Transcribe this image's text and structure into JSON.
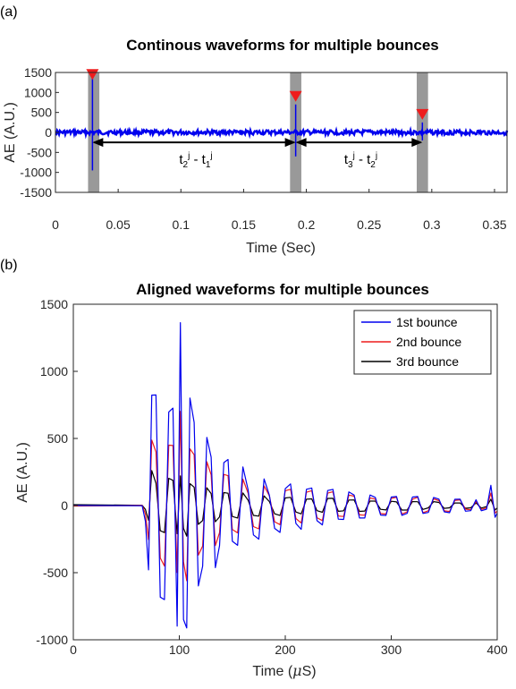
{
  "chart_data": [
    {
      "panel_label": "(a)",
      "type": "line",
      "title": "Continous waveforms for multiple bounces",
      "xlabel": "Time (Sec)",
      "ylabel": "AE (A.U.)",
      "xlim": [
        0,
        0.36
      ],
      "ylim": [
        -1500,
        1500
      ],
      "xticks": [
        0,
        0.05,
        0.1,
        0.15,
        0.2,
        0.25,
        0.3,
        0.35
      ],
      "xtick_labels": [
        "0",
        "0.05",
        "0.1",
        "0.15",
        "0.2",
        "0.25",
        "0.3",
        "0.35"
      ],
      "yticks": [
        1500,
        1000,
        500,
        0,
        -500,
        -1000,
        -1500
      ],
      "ytick_labels": [
        "1500",
        "1000",
        "500",
        "0",
        "-500",
        "-1000",
        "-1500"
      ],
      "grid": false,
      "colors": {
        "signal": "#0000ee",
        "window": "#999999",
        "marker": "#ee1c1c"
      },
      "bounces": [
        {
          "t": 0.0295,
          "peak": 1400,
          "trough": -950,
          "marker_y": 1450
        },
        {
          "t": 0.1915,
          "peak": 700,
          "trough": -600,
          "marker_y": 900
        },
        {
          "t": 0.2925,
          "peak": 250,
          "trough": -200,
          "marker_y": 450
        }
      ],
      "windows": [
        [
          0.026,
          0.035
        ],
        [
          0.187,
          0.196
        ],
        [
          0.288,
          0.297
        ]
      ],
      "intervals": [
        {
          "from": 0.0295,
          "to": 0.1915,
          "y": -250,
          "label": {
            "t1": "t",
            "s1": "2",
            "p1": "j",
            "mid": " - t",
            "s2": "1",
            "p2": "j"
          }
        },
        {
          "from": 0.1915,
          "to": 0.2925,
          "y": -250,
          "label": {
            "t1": "t",
            "s1": "3",
            "p1": "j",
            "mid": " - t",
            "s2": "2",
            "p2": "j"
          }
        }
      ]
    },
    {
      "panel_label": "(b)",
      "type": "line",
      "title": "Aligned waveforms for multiple bounces",
      "xlabel_main": "Time (",
      "xlabel_mu": "μ",
      "xlabel_tail": "S)",
      "ylabel": "AE (A.U.)",
      "xlim": [
        0,
        400
      ],
      "ylim": [
        -1000,
        1500
      ],
      "xticks": [
        0,
        100,
        200,
        300,
        400
      ],
      "xtick_labels": [
        "0",
        "100",
        "200",
        "300",
        "400"
      ],
      "yticks": [
        1500,
        1000,
        500,
        0,
        -500,
        -1000
      ],
      "ytick_labels": [
        "1500",
        "1000",
        "500",
        "0",
        "-500",
        "-1000"
      ],
      "grid": false,
      "legend_position": "top-right",
      "series": [
        {
          "name": "1st bounce",
          "color": "#0000ee",
          "values": [
            [
              0,
              0
            ],
            [
              65,
              0
            ],
            [
              68,
              -120
            ],
            [
              71,
              -480
            ],
            [
              74,
              820
            ],
            [
              78,
              820
            ],
            [
              82,
              -680
            ],
            [
              86,
              -700
            ],
            [
              90,
              700
            ],
            [
              94,
              730
            ],
            [
              98,
              -900
            ],
            [
              101,
              1360
            ],
            [
              104,
              -850
            ],
            [
              107,
              -910
            ],
            [
              110,
              800
            ],
            [
              114,
              620
            ],
            [
              118,
              -600
            ],
            [
              122,
              -450
            ],
            [
              126,
              510
            ],
            [
              130,
              360
            ],
            [
              134,
              -460
            ],
            [
              138,
              -300
            ],
            [
              142,
              320
            ],
            [
              146,
              340
            ],
            [
              150,
              -270
            ],
            [
              155,
              -300
            ],
            [
              160,
              290
            ],
            [
              165,
              120
            ],
            [
              170,
              -220
            ],
            [
              175,
              -250
            ],
            [
              180,
              200
            ],
            [
              185,
              80
            ],
            [
              190,
              -170
            ],
            [
              195,
              -200
            ],
            [
              200,
              130
            ],
            [
              205,
              160
            ],
            [
              210,
              -130
            ],
            [
              215,
              -180
            ],
            [
              220,
              120
            ],
            [
              225,
              130
            ],
            [
              230,
              -110
            ],
            [
              235,
              -140
            ],
            [
              240,
              110
            ],
            [
              245,
              120
            ],
            [
              250,
              -100
            ],
            [
              255,
              -100
            ],
            [
              260,
              100
            ],
            [
              265,
              80
            ],
            [
              270,
              -90
            ],
            [
              275,
              -90
            ],
            [
              280,
              80
            ],
            [
              285,
              60
            ],
            [
              290,
              -70
            ],
            [
              295,
              -70
            ],
            [
              300,
              60
            ],
            [
              305,
              70
            ],
            [
              310,
              -70
            ],
            [
              315,
              -60
            ],
            [
              320,
              60
            ],
            [
              325,
              70
            ],
            [
              330,
              -60
            ],
            [
              335,
              -50
            ],
            [
              340,
              60
            ],
            [
              345,
              50
            ],
            [
              350,
              -50
            ],
            [
              355,
              -50
            ],
            [
              360,
              50
            ],
            [
              365,
              50
            ],
            [
              370,
              -40
            ],
            [
              375,
              -40
            ],
            [
              380,
              40
            ],
            [
              385,
              -40
            ],
            [
              390,
              -30
            ],
            [
              394,
              150
            ],
            [
              398,
              -90
            ],
            [
              400,
              -60
            ]
          ]
        },
        {
          "name": "2nd bounce",
          "color": "#ee1c1c",
          "values": [
            [
              0,
              0
            ],
            [
              65,
              0
            ],
            [
              68,
              -60
            ],
            [
              71,
              -250
            ],
            [
              74,
              490
            ],
            [
              78,
              400
            ],
            [
              82,
              -390
            ],
            [
              86,
              -450
            ],
            [
              90,
              450
            ],
            [
              94,
              450
            ],
            [
              98,
              -500
            ],
            [
              101,
              700
            ],
            [
              104,
              -420
            ],
            [
              107,
              -560
            ],
            [
              110,
              420
            ],
            [
              114,
              380
            ],
            [
              118,
              -370
            ],
            [
              122,
              -300
            ],
            [
              126,
              330
            ],
            [
              130,
              230
            ],
            [
              134,
              -300
            ],
            [
              138,
              -200
            ],
            [
              142,
              230
            ],
            [
              146,
              220
            ],
            [
              150,
              -180
            ],
            [
              155,
              -200
            ],
            [
              160,
              200
            ],
            [
              165,
              90
            ],
            [
              170,
              -160
            ],
            [
              175,
              -170
            ],
            [
              180,
              150
            ],
            [
              185,
              70
            ],
            [
              190,
              -120
            ],
            [
              195,
              -140
            ],
            [
              200,
              110
            ],
            [
              205,
              120
            ],
            [
              210,
              -100
            ],
            [
              215,
              -130
            ],
            [
              220,
              100
            ],
            [
              225,
              110
            ],
            [
              230,
              -90
            ],
            [
              235,
              -110
            ],
            [
              240,
              90
            ],
            [
              245,
              100
            ],
            [
              250,
              -80
            ],
            [
              255,
              -80
            ],
            [
              260,
              80
            ],
            [
              265,
              70
            ],
            [
              270,
              -70
            ],
            [
              275,
              -70
            ],
            [
              280,
              60
            ],
            [
              285,
              50
            ],
            [
              290,
              -60
            ],
            [
              295,
              -60
            ],
            [
              300,
              50
            ],
            [
              305,
              60
            ],
            [
              310,
              -60
            ],
            [
              315,
              -50
            ],
            [
              320,
              50
            ],
            [
              325,
              60
            ],
            [
              330,
              -50
            ],
            [
              335,
              -40
            ],
            [
              340,
              50
            ],
            [
              345,
              40
            ],
            [
              350,
              -40
            ],
            [
              355,
              -40
            ],
            [
              360,
              40
            ],
            [
              365,
              40
            ],
            [
              370,
              -30
            ],
            [
              375,
              -30
            ],
            [
              380,
              30
            ],
            [
              385,
              -30
            ],
            [
              390,
              -20
            ],
            [
              394,
              90
            ],
            [
              398,
              -60
            ],
            [
              400,
              -40
            ]
          ]
        },
        {
          "name": "3rd bounce",
          "color": "#000000",
          "values": [
            [
              0,
              0
            ],
            [
              65,
              0
            ],
            [
              68,
              -30
            ],
            [
              71,
              -110
            ],
            [
              74,
              260
            ],
            [
              78,
              170
            ],
            [
              82,
              -190
            ],
            [
              86,
              -200
            ],
            [
              90,
              200
            ],
            [
              94,
              190
            ],
            [
              98,
              -210
            ],
            [
              101,
              220
            ],
            [
              104,
              -170
            ],
            [
              107,
              -230
            ],
            [
              110,
              160
            ],
            [
              114,
              140
            ],
            [
              118,
              -140
            ],
            [
              122,
              -110
            ],
            [
              126,
              130
            ],
            [
              130,
              90
            ],
            [
              134,
              -120
            ],
            [
              138,
              -80
            ],
            [
              142,
              100
            ],
            [
              146,
              90
            ],
            [
              150,
              -80
            ],
            [
              155,
              -90
            ],
            [
              160,
              90
            ],
            [
              165,
              40
            ],
            [
              170,
              -70
            ],
            [
              175,
              -80
            ],
            [
              180,
              70
            ],
            [
              185,
              30
            ],
            [
              190,
              -60
            ],
            [
              195,
              -70
            ],
            [
              200,
              60
            ],
            [
              205,
              60
            ],
            [
              210,
              -50
            ],
            [
              215,
              -60
            ],
            [
              220,
              50
            ],
            [
              225,
              50
            ],
            [
              230,
              -40
            ],
            [
              235,
              -50
            ],
            [
              240,
              50
            ],
            [
              245,
              50
            ],
            [
              250,
              -40
            ],
            [
              255,
              -40
            ],
            [
              260,
              40
            ],
            [
              265,
              40
            ],
            [
              270,
              -40
            ],
            [
              275,
              -40
            ],
            [
              280,
              30
            ],
            [
              285,
              30
            ],
            [
              290,
              -30
            ],
            [
              295,
              -30
            ],
            [
              300,
              30
            ],
            [
              305,
              30
            ],
            [
              310,
              -30
            ],
            [
              315,
              -30
            ],
            [
              320,
              30
            ],
            [
              325,
              30
            ],
            [
              330,
              -30
            ],
            [
              335,
              -20
            ],
            [
              340,
              30
            ],
            [
              345,
              20
            ],
            [
              350,
              -20
            ],
            [
              355,
              -20
            ],
            [
              360,
              20
            ],
            [
              365,
              20
            ],
            [
              370,
              -20
            ],
            [
              375,
              -20
            ],
            [
              380,
              20
            ],
            [
              385,
              -20
            ],
            [
              390,
              -10
            ],
            [
              394,
              50
            ],
            [
              398,
              -30
            ],
            [
              400,
              -20
            ]
          ]
        }
      ]
    }
  ]
}
